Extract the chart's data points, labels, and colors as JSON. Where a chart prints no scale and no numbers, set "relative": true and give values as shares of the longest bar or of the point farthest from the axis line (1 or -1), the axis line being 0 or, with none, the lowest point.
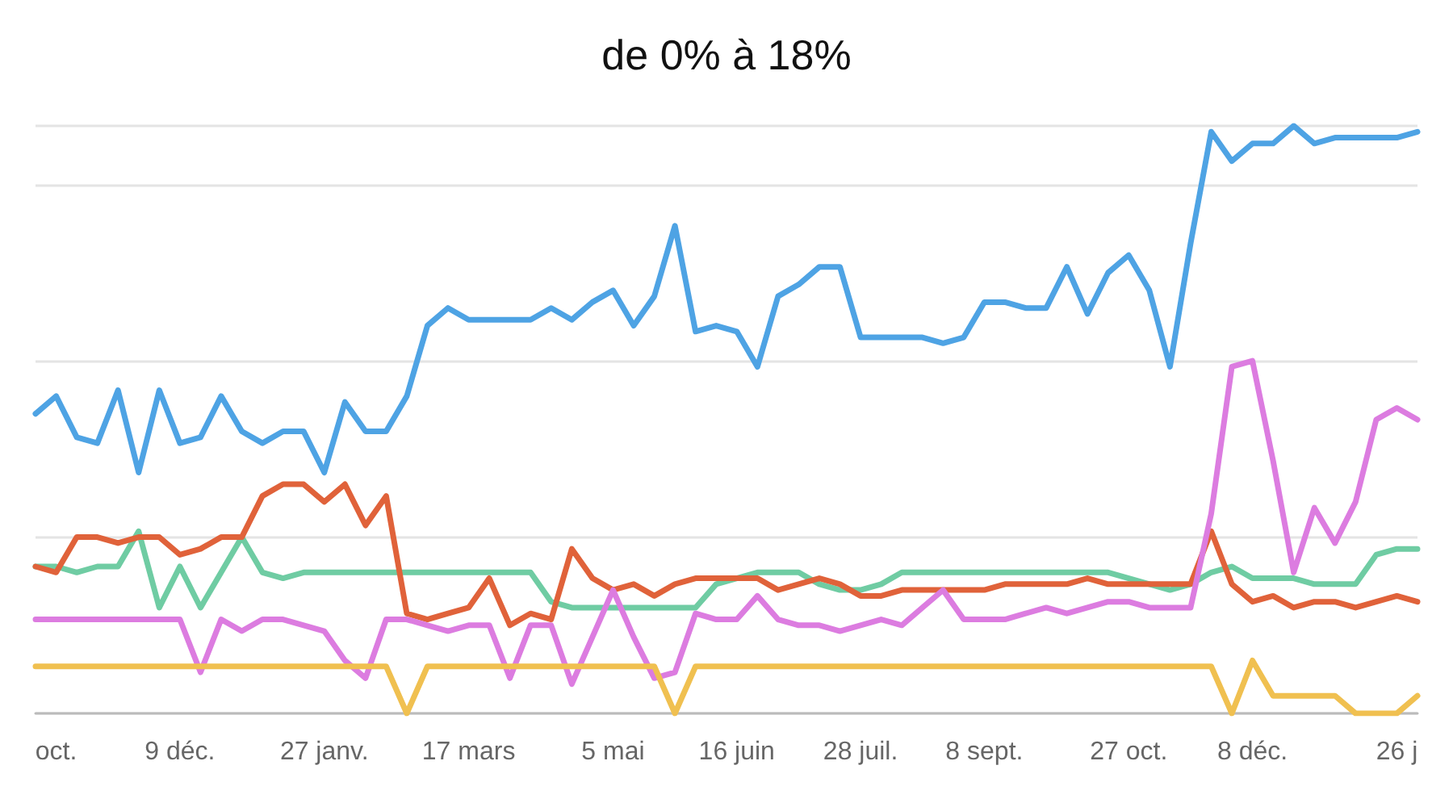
{
  "chart_data": {
    "type": "line",
    "title": "de 0% à 18%",
    "relative": true,
    "grid": "y",
    "marker": "none",
    "categories": [
      null,
      "oct.",
      null,
      null,
      null,
      null,
      null,
      "9 déc.",
      null,
      null,
      null,
      null,
      null,
      null,
      "27 janv.",
      null,
      null,
      null,
      null,
      null,
      null,
      "17 mars",
      null,
      null,
      null,
      null,
      null,
      null,
      "5 mai",
      null,
      null,
      null,
      null,
      null,
      "16 juin",
      null,
      null,
      null,
      null,
      null,
      "28 juil.",
      null,
      null,
      null,
      null,
      null,
      "8 sept.",
      null,
      null,
      null,
      null,
      null,
      null,
      "27 oct.",
      null,
      null,
      null,
      null,
      null,
      "8 déc.",
      null,
      null,
      null,
      null,
      null,
      null,
      "26 j",
      null
    ],
    "series": [
      {
        "color": "#4ea3e4",
        "values": [
          0.51,
          0.54,
          0.47,
          0.46,
          0.55,
          0.41,
          0.55,
          0.46,
          0.47,
          0.54,
          0.48,
          0.46,
          0.48,
          0.48,
          0.41,
          0.53,
          0.48,
          0.48,
          0.54,
          0.66,
          0.69,
          0.67,
          0.67,
          0.67,
          0.67,
          0.69,
          0.67,
          0.7,
          0.72,
          0.66,
          0.71,
          0.83,
          0.65,
          0.66,
          0.65,
          0.59,
          0.71,
          0.73,
          0.76,
          0.76,
          0.64,
          0.64,
          0.64,
          0.64,
          0.63,
          0.64,
          0.7,
          0.7,
          0.69,
          0.69,
          0.76,
          0.68,
          0.75,
          0.78,
          0.72,
          0.59,
          0.8,
          0.99,
          0.94,
          0.97,
          0.97,
          1,
          0.97,
          0.98,
          0.98,
          0.98,
          0.98,
          0.99
        ]
      },
      {
        "color": "#6fcca3",
        "values": [
          0.25,
          0.25,
          0.24,
          0.25,
          0.25,
          0.31,
          0.18,
          0.25,
          0.18,
          0.24,
          0.3,
          0.24,
          0.23,
          0.24,
          0.24,
          0.24,
          0.24,
          0.24,
          0.24,
          0.24,
          0.24,
          0.24,
          0.24,
          0.24,
          0.24,
          0.19,
          0.18,
          0.18,
          0.18,
          0.18,
          0.18,
          0.18,
          0.18,
          0.22,
          0.23,
          0.24,
          0.24,
          0.24,
          0.22,
          0.21,
          0.21,
          0.22,
          0.24,
          0.24,
          0.24,
          0.24,
          0.24,
          0.24,
          0.24,
          0.24,
          0.24,
          0.24,
          0.24,
          0.23,
          0.22,
          0.21,
          0.22,
          0.24,
          0.25,
          0.23,
          0.23,
          0.23,
          0.22,
          0.22,
          0.22,
          0.27,
          0.28,
          0.28
        ]
      },
      {
        "color": "#e0623a",
        "values": [
          0.25,
          0.24,
          0.3,
          0.3,
          0.29,
          0.3,
          0.3,
          0.27,
          0.28,
          0.3,
          0.3,
          0.37,
          0.39,
          0.39,
          0.36,
          0.39,
          0.32,
          0.37,
          0.17,
          0.16,
          0.17,
          0.18,
          0.23,
          0.15,
          0.17,
          0.16,
          0.28,
          0.23,
          0.21,
          0.22,
          0.2,
          0.22,
          0.23,
          0.23,
          0.23,
          0.23,
          0.21,
          0.22,
          0.23,
          0.22,
          0.2,
          0.2,
          0.21,
          0.21,
          0.21,
          0.21,
          0.21,
          0.22,
          0.22,
          0.22,
          0.22,
          0.23,
          0.22,
          0.22,
          0.22,
          0.22,
          0.22,
          0.31,
          0.22,
          0.19,
          0.2,
          0.18,
          0.19,
          0.19,
          0.18,
          0.19,
          0.2,
          0.19
        ]
      },
      {
        "color": "#dc7ce0",
        "values": [
          0.16,
          0.16,
          0.16,
          0.16,
          0.16,
          0.16,
          0.16,
          0.16,
          0.07,
          0.16,
          0.14,
          0.16,
          0.16,
          0.15,
          0.14,
          0.09,
          0.06,
          0.16,
          0.16,
          0.15,
          0.14,
          0.15,
          0.15,
          0.06,
          0.15,
          0.15,
          0.05,
          0.13,
          0.21,
          0.13,
          0.06,
          0.07,
          0.17,
          0.16,
          0.16,
          0.2,
          0.16,
          0.15,
          0.15,
          0.14,
          0.15,
          0.16,
          0.15,
          0.18,
          0.21,
          0.16,
          0.16,
          0.16,
          0.17,
          0.18,
          0.17,
          0.18,
          0.19,
          0.19,
          0.18,
          0.18,
          0.18,
          0.34,
          0.59,
          0.6,
          0.43,
          0.24,
          0.35,
          0.29,
          0.36,
          0.5,
          0.52,
          0.5
        ]
      },
      {
        "color": "#f0c050",
        "values": [
          0.08,
          0.08,
          0.08,
          0.08,
          0.08,
          0.08,
          0.08,
          0.08,
          0.08,
          0.08,
          0.08,
          0.08,
          0.08,
          0.08,
          0.08,
          0.08,
          0.08,
          0.08,
          0,
          0.08,
          0.08,
          0.08,
          0.08,
          0.08,
          0.08,
          0.08,
          0.08,
          0.08,
          0.08,
          0.08,
          0.08,
          0,
          0.08,
          0.08,
          0.08,
          0.08,
          0.08,
          0.08,
          0.08,
          0.08,
          0.08,
          0.08,
          0.08,
          0.08,
          0.08,
          0.08,
          0.08,
          0.08,
          0.08,
          0.08,
          0.08,
          0.08,
          0.08,
          0.08,
          0.08,
          0.08,
          0.08,
          0.08,
          0,
          0.09,
          0.03,
          0.03,
          0.03,
          0.03,
          0,
          0,
          0,
          0.03
        ]
      }
    ]
  }
}
